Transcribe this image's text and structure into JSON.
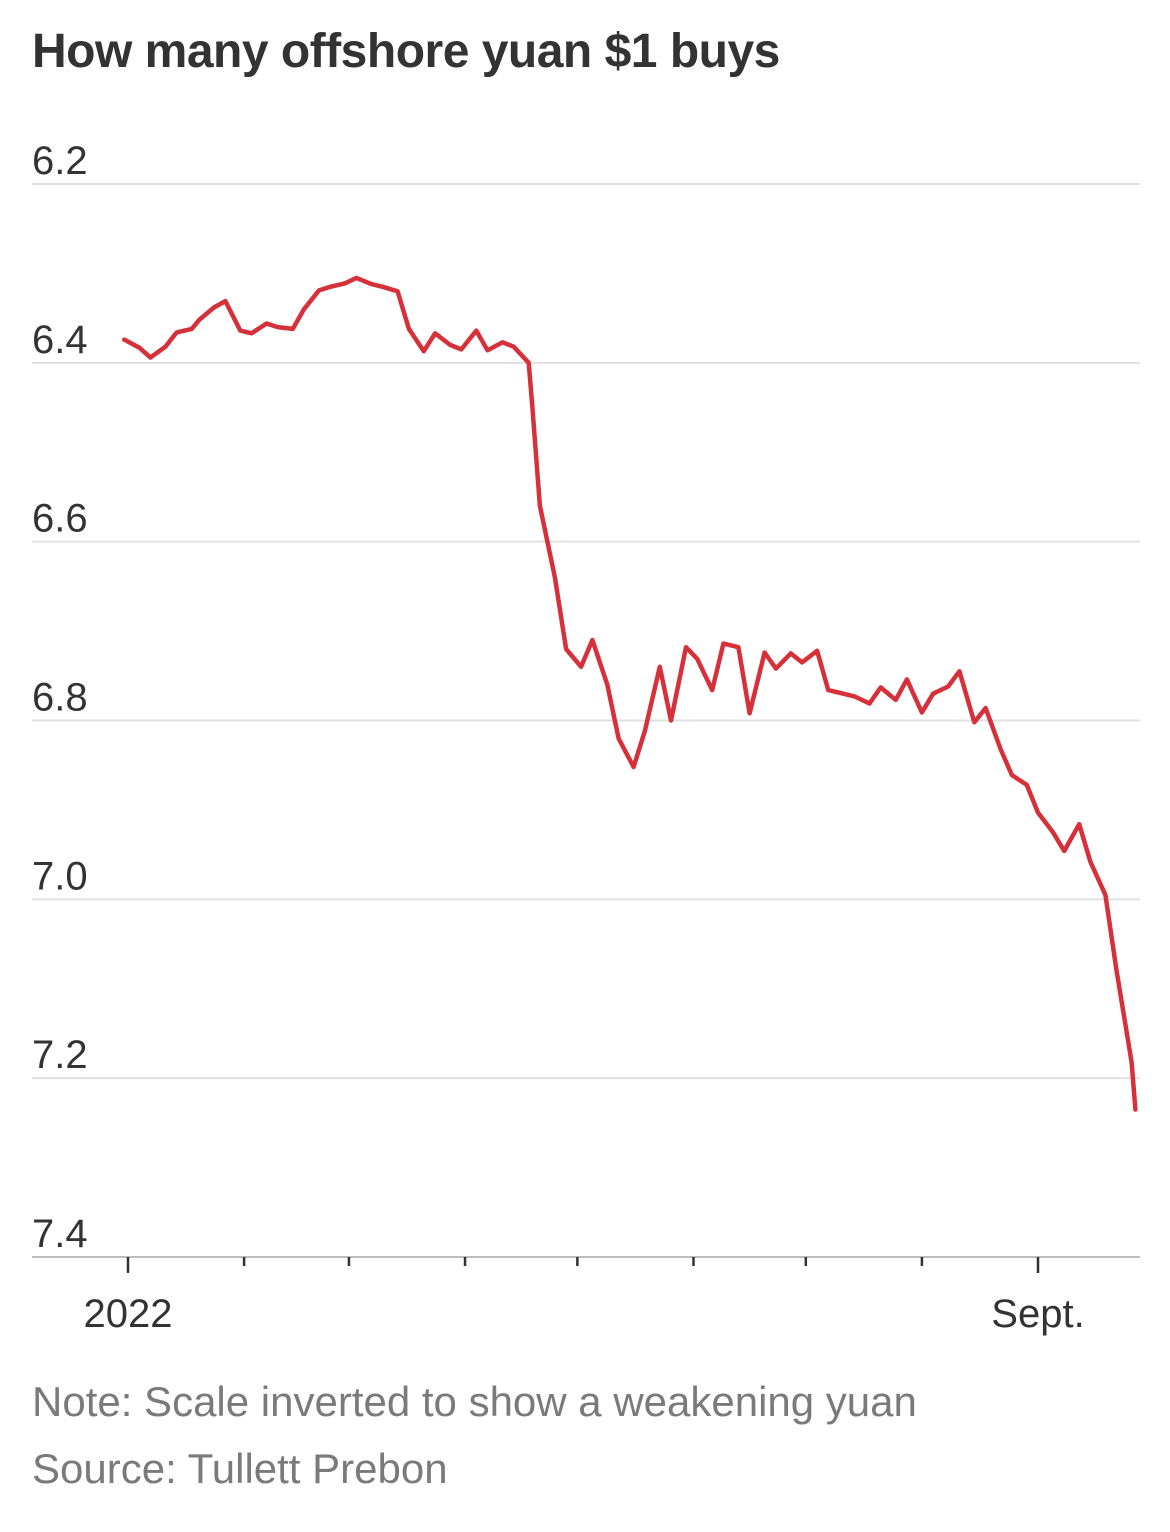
{
  "chart_data": {
    "type": "line",
    "title": "How many offshore yuan $1 buys",
    "y_inverted": true,
    "ylim": [
      6.2,
      7.4
    ],
    "yticks": [
      "6.2",
      "6.4",
      "6.6",
      "6.8",
      "7.0",
      "7.2",
      "7.4"
    ],
    "xlabels": [
      "2022",
      "Sept."
    ],
    "x_tick_months": [
      "2022-01-01",
      "2022-02-01",
      "2022-03-01",
      "2022-04-01",
      "2022-05-01",
      "2022-06-01",
      "2022-07-01",
      "2022-08-01",
      "2022-09-01"
    ],
    "series_color": "#d6313a",
    "grid": true,
    "series": [
      {
        "x": [
          "2021-12-31",
          "2022-01-04",
          "2022-01-07",
          "2022-01-11",
          "2022-01-14",
          "2022-01-18",
          "2022-01-20",
          "2022-01-24",
          "2022-01-27",
          "2022-01-31",
          "2022-02-03",
          "2022-02-07",
          "2022-02-10",
          "2022-02-14",
          "2022-02-17",
          "2022-02-21",
          "2022-02-24",
          "2022-02-28",
          "2022-03-03",
          "2022-03-07",
          "2022-03-10",
          "2022-03-14",
          "2022-03-17",
          "2022-03-21",
          "2022-03-24",
          "2022-03-28",
          "2022-03-31",
          "2022-04-04",
          "2022-04-07",
          "2022-04-11",
          "2022-04-14",
          "2022-04-18",
          "2022-04-19",
          "2022-04-21",
          "2022-04-25",
          "2022-04-28",
          "2022-05-02",
          "2022-05-05",
          "2022-05-09",
          "2022-05-12",
          "2022-05-16",
          "2022-05-19",
          "2022-05-23",
          "2022-05-26",
          "2022-05-30",
          "2022-06-02",
          "2022-06-06",
          "2022-06-09",
          "2022-06-13",
          "2022-06-16",
          "2022-06-20",
          "2022-06-23",
          "2022-06-27",
          "2022-06-30",
          "2022-07-04",
          "2022-07-07",
          "2022-07-11",
          "2022-07-14",
          "2022-07-18",
          "2022-07-21",
          "2022-07-25",
          "2022-07-28",
          "2022-08-01",
          "2022-08-04",
          "2022-08-08",
          "2022-08-11",
          "2022-08-15",
          "2022-08-18",
          "2022-08-22",
          "2022-08-25",
          "2022-08-29",
          "2022-09-01",
          "2022-09-05",
          "2022-09-08",
          "2022-09-12",
          "2022-09-15",
          "2022-09-19",
          "2022-09-22",
          "2022-09-26",
          "2022-09-27"
        ],
        "values": [
          6.374,
          6.383,
          6.394,
          6.382,
          6.366,
          6.362,
          6.352,
          6.338,
          6.331,
          6.364,
          6.367,
          6.356,
          6.36,
          6.362,
          6.34,
          6.319,
          6.315,
          6.311,
          6.305,
          6.312,
          6.315,
          6.32,
          6.362,
          6.387,
          6.367,
          6.38,
          6.385,
          6.364,
          6.386,
          6.377,
          6.382,
          6.4,
          6.45,
          6.56,
          6.64,
          6.72,
          6.74,
          6.71,
          6.76,
          6.82,
          6.852,
          6.812,
          6.74,
          6.8,
          6.718,
          6.731,
          6.766,
          6.714,
          6.718,
          6.792,
          6.724,
          6.742,
          6.725,
          6.735,
          6.722,
          6.766,
          6.77,
          6.773,
          6.781,
          6.763,
          6.777,
          6.754,
          6.791,
          6.77,
          6.762,
          6.745,
          6.802,
          6.786,
          6.832,
          6.861,
          6.872,
          6.903,
          6.925,
          6.946,
          6.916,
          6.958,
          6.995,
          7.08,
          7.182,
          7.235
        ]
      }
    ]
  },
  "notes": {
    "note": "Note: Scale inverted to show a weakening yuan",
    "source": "Source: Tullett Prebon"
  }
}
